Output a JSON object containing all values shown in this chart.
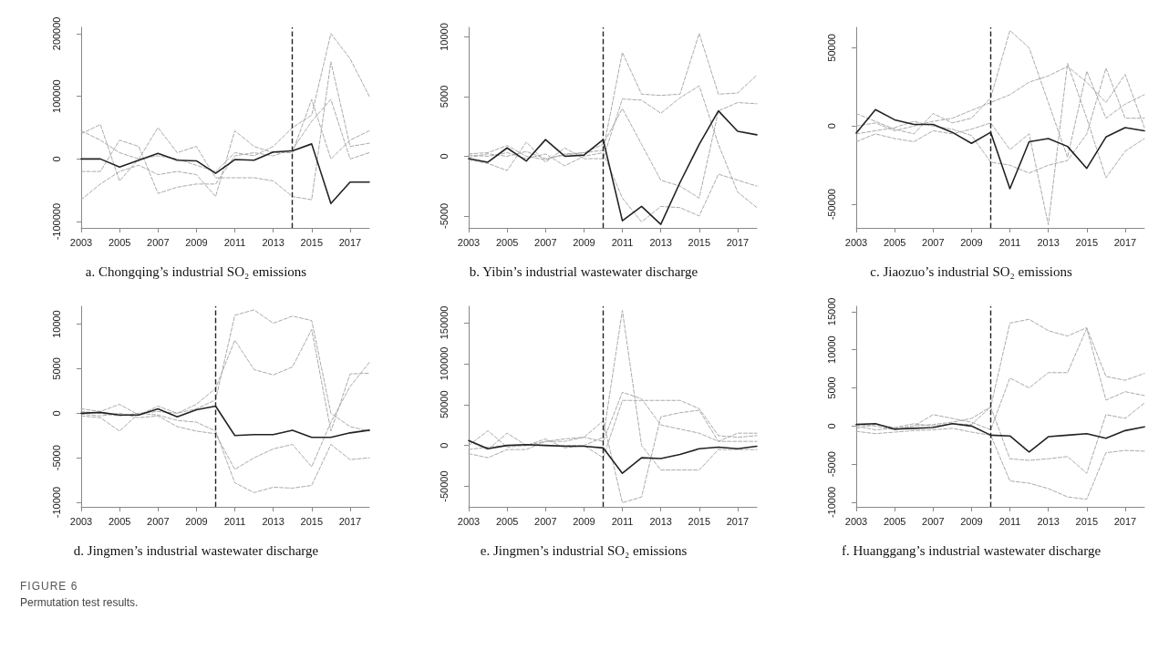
{
  "chart_data": [
    {
      "type": "line",
      "title": "a. Chongqing’s industrial SO₂ emissions",
      "x": [
        2003,
        2004,
        2005,
        2006,
        2007,
        2008,
        2009,
        2010,
        2011,
        2012,
        2013,
        2014,
        2015,
        2016,
        2017,
        2018
      ],
      "xlim": [
        2003,
        2018
      ],
      "xticks": [
        2003,
        2005,
        2007,
        2009,
        2011,
        2013,
        2015,
        2017
      ],
      "ylim": [
        -110000,
        210000
      ],
      "yticks": [
        -100000,
        0,
        100000,
        200000
      ],
      "grid": false,
      "marker": "none",
      "annotations": [
        "FIGURE 6",
        "Permutation test results."
      ],
      "ref_lines": [
        {
          "axis": "x",
          "value": 2014,
          "color": "#222222",
          "line_style": "dashed"
        }
      ],
      "series": [
        {
          "color": "#aaaaaa",
          "line_style": "dashed",
          "values": [
            45000,
            30000,
            10000,
            0,
            5000,
            0,
            -10000,
            -20000,
            10000,
            5000,
            20000,
            50000,
            70000,
            200000,
            160000,
            100000
          ]
        },
        {
          "color": "#aaaaaa",
          "line_style": "dashed",
          "values": [
            -65000,
            -40000,
            -20000,
            -10000,
            -25000,
            -20000,
            -25000,
            -60000,
            45000,
            20000,
            10000,
            10000,
            95000,
            0,
            30000,
            45000
          ]
        },
        {
          "color": "#aaaaaa",
          "line_style": "dashed",
          "values": [
            40000,
            55000,
            -35000,
            0,
            50000,
            10000,
            20000,
            -30000,
            -30000,
            -30000,
            -35000,
            -60000,
            -65000,
            155000,
            20000,
            25000
          ]
        },
        {
          "color": "#aaaaaa",
          "line_style": "dashed",
          "values": [
            -20000,
            -20000,
            30000,
            20000,
            -55000,
            -45000,
            -40000,
            -40000,
            5000,
            10000,
            5000,
            15000,
            60000,
            95000,
            0,
            10000
          ]
        },
        {
          "color": "#222222",
          "line_style": "solid",
          "values": [
            0,
            0,
            -13000,
            -2000,
            9000,
            -2000,
            -3000,
            -23000,
            -1000,
            -2000,
            11000,
            13000,
            24000,
            -71000,
            -37000,
            -37000
          ]
        }
      ]
    },
    {
      "type": "line",
      "title": "b. Yibin’s industrial wastewater discharge",
      "x": [
        2003,
        2004,
        2005,
        2006,
        2007,
        2008,
        2009,
        2010,
        2011,
        2012,
        2013,
        2014,
        2015,
        2016,
        2017,
        2018
      ],
      "xlim": [
        2003,
        2018
      ],
      "xticks": [
        2003,
        2005,
        2007,
        2009,
        2011,
        2013,
        2015,
        2017
      ],
      "ylim": [
        -6000,
        10800
      ],
      "yticks": [
        -5000,
        0,
        5000,
        10000
      ],
      "grid": false,
      "marker": "none",
      "ref_lines": [
        {
          "axis": "x",
          "value": 2010,
          "color": "#222222",
          "line_style": "dashed"
        }
      ],
      "series": [
        {
          "color": "#aaaaaa",
          "line_style": "dashed",
          "values": [
            200,
            300,
            900,
            0,
            -300,
            200,
            300,
            500,
            8700,
            5200,
            5100,
            5200,
            10300,
            5200,
            5300,
            6800
          ]
        },
        {
          "color": "#aaaaaa",
          "line_style": "dashed",
          "values": [
            -300,
            -600,
            -1200,
            1200,
            -500,
            700,
            -200,
            -200,
            4800,
            4700,
            3600,
            4900,
            5900,
            1000,
            -3000,
            -4300
          ]
        },
        {
          "color": "#aaaaaa",
          "line_style": "dashed",
          "values": [
            100,
            0,
            300,
            -200,
            200,
            -800,
            0,
            300,
            -3500,
            -5500,
            -4200,
            -4300,
            -5000,
            -1500,
            -2000,
            -2500
          ]
        },
        {
          "color": "#aaaaaa",
          "line_style": "dashed",
          "values": [
            -100,
            200,
            0,
            400,
            -200,
            100,
            300,
            1000,
            4000,
            1000,
            -2000,
            -2500,
            -3500,
            3800,
            4500,
            4400
          ]
        },
        {
          "color": "#222222",
          "line_style": "solid",
          "values": [
            -200,
            -500,
            700,
            -400,
            1400,
            0,
            100,
            1400,
            -5400,
            -4200,
            -5700,
            -2200,
            1000,
            3800,
            2100,
            1800
          ]
        }
      ]
    },
    {
      "type": "line",
      "title": "c. Jiaozuo’s industrial SO₂ emissions",
      "x": [
        2003,
        2004,
        2005,
        2006,
        2007,
        2008,
        2009,
        2010,
        2011,
        2012,
        2013,
        2014,
        2015,
        2016,
        2017,
        2018
      ],
      "xlim": [
        2003,
        2018
      ],
      "xticks": [
        2003,
        2005,
        2007,
        2009,
        2011,
        2013,
        2015,
        2017
      ],
      "ylim": [
        -65000,
        63000
      ],
      "yticks": [
        -50000,
        0,
        50000
      ],
      "grid": false,
      "marker": "none",
      "ref_lines": [
        {
          "axis": "x",
          "value": 2010,
          "color": "#222222",
          "line_style": "dashed"
        }
      ],
      "series": [
        {
          "color": "#aaaaaa",
          "line_style": "dashed",
          "values": [
            8000,
            3000,
            -2000,
            -5000,
            8000,
            2000,
            5000,
            18000,
            61000,
            50000,
            15000,
            -20000,
            35000,
            5000,
            14000,
            20000
          ]
        },
        {
          "color": "#aaaaaa",
          "line_style": "dashed",
          "values": [
            -10000,
            -5000,
            -8000,
            -10000,
            -3000,
            -5000,
            -2000,
            2000,
            -15000,
            -5000,
            -63000,
            40000,
            5000,
            -33000,
            -16000,
            -8000
          ]
        },
        {
          "color": "#aaaaaa",
          "line_style": "dashed",
          "values": [
            0,
            2000,
            -3000,
            0,
            3000,
            5000,
            10000,
            15000,
            20000,
            28000,
            32000,
            38000,
            28000,
            15000,
            33000,
            -1000
          ]
        },
        {
          "color": "#aaaaaa",
          "line_style": "dashed",
          "values": [
            -5000,
            -3000,
            -1000,
            3000,
            0,
            -2000,
            -6000,
            -23000,
            -25000,
            -30000,
            -25000,
            -22000,
            -5000,
            37000,
            5000,
            5000
          ]
        },
        {
          "color": "#222222",
          "line_style": "solid",
          "values": [
            -4500,
            10500,
            4000,
            1000,
            1000,
            -4000,
            -11000,
            -4000,
            -40000,
            -10000,
            -8000,
            -13000,
            -27000,
            -7000,
            -1000,
            -3000
          ]
        }
      ]
    },
    {
      "type": "line",
      "title": "d. Jingmen’s industrial wastewater discharge",
      "x": [
        2003,
        2004,
        2005,
        2006,
        2007,
        2008,
        2009,
        2010,
        2011,
        2012,
        2013,
        2014,
        2015,
        2016,
        2017,
        2018
      ],
      "xlim": [
        2003,
        2018
      ],
      "xticks": [
        2003,
        2005,
        2007,
        2009,
        2011,
        2013,
        2015,
        2017
      ],
      "ylim": [
        -10500,
        12000
      ],
      "yticks": [
        -10000,
        -5000,
        0,
        5000,
        10000
      ],
      "grid": false,
      "marker": "none",
      "ref_lines": [
        {
          "axis": "x",
          "value": 2010,
          "color": "#222222",
          "line_style": "dashed"
        }
      ],
      "series": [
        {
          "color": "#aaaaaa",
          "line_style": "dashed",
          "values": [
            200,
            0,
            -300,
            0,
            200,
            0,
            500,
            1500,
            11000,
            11600,
            10100,
            10900,
            10400,
            0,
            -1500,
            -2000
          ]
        },
        {
          "color": "#aaaaaa",
          "line_style": "dashed",
          "values": [
            -300,
            -500,
            -2000,
            0,
            -200,
            -800,
            -1000,
            -2000,
            -7800,
            -8900,
            -8300,
            -8400,
            -8100,
            -3500,
            -5200,
            -5000
          ]
        },
        {
          "color": "#aaaaaa",
          "line_style": "dashed",
          "values": [
            500,
            200,
            1000,
            -200,
            800,
            0,
            1000,
            2800,
            8200,
            4900,
            4300,
            5200,
            9400,
            -2000,
            4400,
            4500
          ]
        },
        {
          "color": "#aaaaaa",
          "line_style": "dashed",
          "values": [
            -100,
            -300,
            0,
            -500,
            -300,
            -1500,
            -2000,
            -2300,
            -6300,
            -5000,
            -4000,
            -3500,
            -6000,
            -1000,
            3000,
            5700
          ]
        },
        {
          "color": "#222222",
          "line_style": "solid",
          "values": [
            0,
            100,
            -200,
            -200,
            500,
            -400,
            400,
            800,
            -2500,
            -2400,
            -2400,
            -1900,
            -2700,
            -2700,
            -2200,
            -1900
          ]
        }
      ]
    },
    {
      "type": "line",
      "title": "e. Jingmen’s industrial SO₂ emissions",
      "x": [
        2003,
        2004,
        2005,
        2006,
        2007,
        2008,
        2009,
        2010,
        2011,
        2012,
        2013,
        2014,
        2015,
        2016,
        2017,
        2018
      ],
      "xlim": [
        2003,
        2018
      ],
      "xticks": [
        2003,
        2005,
        2007,
        2009,
        2011,
        2013,
        2015,
        2017
      ],
      "ylim": [
        -75000,
        170000
      ],
      "yticks": [
        -50000,
        0,
        50000,
        100000,
        150000
      ],
      "grid": false,
      "marker": "none",
      "ref_lines": [
        {
          "axis": "x",
          "value": 2010,
          "color": "#222222",
          "line_style": "dashed"
        }
      ],
      "series": [
        {
          "color": "#aaaaaa",
          "line_style": "dashed",
          "values": [
            -5000,
            -2000,
            0,
            0,
            0,
            0,
            0,
            10000,
            165000,
            0,
            -30000,
            -30000,
            -30000,
            -5000,
            -5000,
            -5000
          ]
        },
        {
          "color": "#aaaaaa",
          "line_style": "dashed",
          "values": [
            -10000,
            -15000,
            -5000,
            -5000,
            5000,
            5000,
            10000,
            30000,
            -70000,
            -63000,
            35000,
            40000,
            43000,
            5000,
            5000,
            5000
          ]
        },
        {
          "color": "#aaaaaa",
          "line_style": "dashed",
          "values": [
            0,
            18000,
            -2000,
            0,
            5000,
            8000,
            10000,
            5000,
            65000,
            57000,
            25000,
            20000,
            15000,
            5000,
            15000,
            15000
          ]
        },
        {
          "color": "#aaaaaa",
          "line_style": "dashed",
          "values": [
            5000,
            -5000,
            15000,
            0,
            8000,
            -3000,
            0,
            -15000,
            55000,
            55000,
            55000,
            55000,
            45000,
            12000,
            10000,
            12000
          ]
        },
        {
          "color": "#222222",
          "line_style": "solid",
          "values": [
            6000,
            -4000,
            0,
            1000,
            0,
            -1000,
            -1000,
            -3000,
            -34000,
            -15000,
            -16000,
            -11000,
            -4000,
            -2000,
            -4000,
            -1000
          ]
        }
      ]
    },
    {
      "type": "line",
      "title": "f. Huanggang’s industrial wastewater discharge",
      "x": [
        2003,
        2004,
        2005,
        2006,
        2007,
        2008,
        2009,
        2010,
        2011,
        2012,
        2013,
        2014,
        2015,
        2016,
        2017,
        2018
      ],
      "xlim": [
        2003,
        2018
      ],
      "xticks": [
        2003,
        2005,
        2007,
        2009,
        2011,
        2013,
        2015,
        2017
      ],
      "ylim": [
        -10600,
        15700
      ],
      "yticks": [
        -10000,
        -5000,
        0,
        5000,
        10000,
        15000
      ],
      "grid": false,
      "marker": "none",
      "ref_lines": [
        {
          "axis": "x",
          "value": 2010,
          "color": "#222222",
          "line_style": "dashed"
        }
      ],
      "series": [
        {
          "color": "#aaaaaa",
          "line_style": "dashed",
          "values": [
            0,
            -500,
            -300,
            0,
            200,
            500,
            1000,
            2500,
            13500,
            14000,
            12500,
            11800,
            12900,
            6500,
            6000,
            6900
          ]
        },
        {
          "color": "#aaaaaa",
          "line_style": "dashed",
          "values": [
            -700,
            -1000,
            -800,
            -600,
            -500,
            -300,
            -800,
            -1200,
            -7200,
            -7500,
            -8200,
            -9300,
            -9600,
            -3500,
            -3200,
            -3300
          ]
        },
        {
          "color": "#aaaaaa",
          "line_style": "dashed",
          "values": [
            200,
            0,
            -500,
            0,
            1500,
            1000,
            500,
            -500,
            6300,
            5000,
            7000,
            7000,
            12800,
            3400,
            4500,
            4000
          ]
        },
        {
          "color": "#aaaaaa",
          "line_style": "dashed",
          "values": [
            -300,
            200,
            -200,
            300,
            0,
            300,
            200,
            2500,
            -4300,
            -4500,
            -4300,
            -4000,
            -6200,
            1500,
            1000,
            3000
          ]
        },
        {
          "color": "#222222",
          "line_style": "solid",
          "values": [
            200,
            300,
            -400,
            -300,
            -200,
            300,
            0,
            -1200,
            -1300,
            -3400,
            -1400,
            -1200,
            -1000,
            -1600,
            -600,
            -100
          ]
        }
      ]
    }
  ]
}
